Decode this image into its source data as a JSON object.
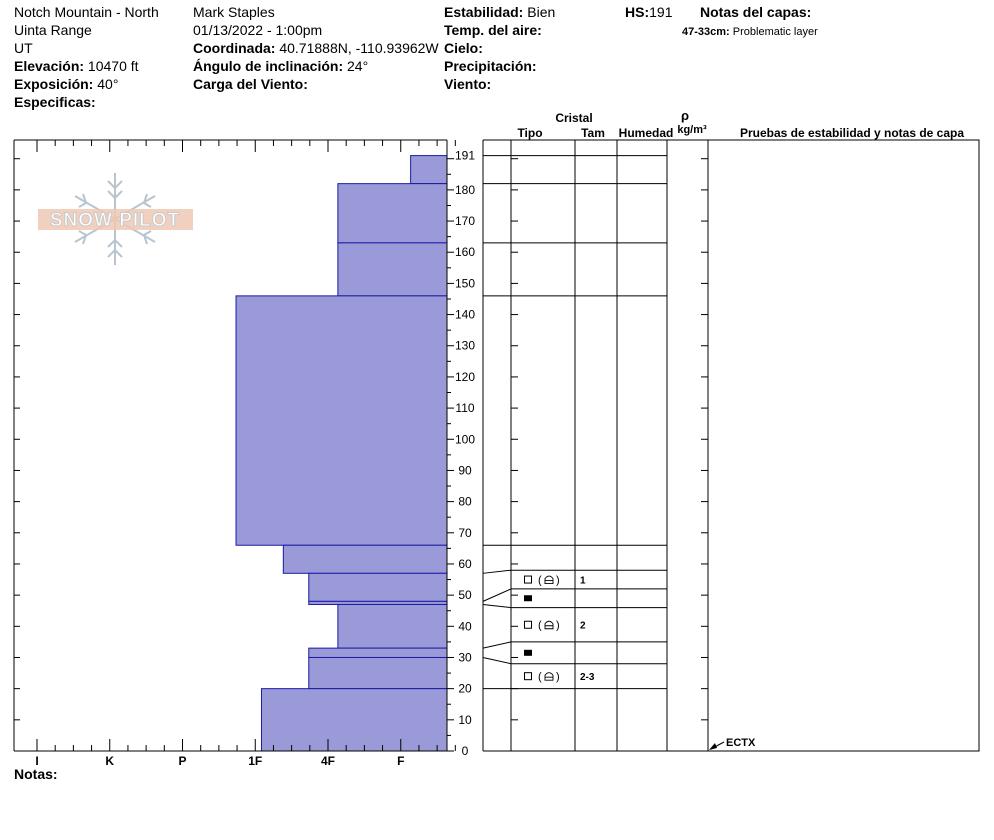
{
  "header": {
    "location": "Notch Mountain - North",
    "range": "Uinta Range",
    "state": "UT",
    "elevation_label": "Elevación:",
    "elevation_value": "10470 ft",
    "aspect_label": "Exposición:",
    "aspect_value": "40°",
    "specifics_label": "Especificas:",
    "observer": "Mark Staples",
    "datetime": "01/13/2022 - 1:00pm",
    "coord_label": "Coordinada:",
    "coord_value": "40.71888N, -110.93962W",
    "slope_label": "Ángulo de inclinación:",
    "slope_value": "24°",
    "wind_load_label": "Carga del Viento:",
    "stability_label": "Estabilidad:",
    "stability_value": "Bien",
    "air_temp_label": "Temp. del aire:",
    "sky_label": "Cielo:",
    "precip_label": "Precipitación:",
    "wind_label": "Viento:",
    "hs_label": "HS:",
    "hs_value": "191",
    "layer_notes_label": "Notas del capas:",
    "layer_note_range": "47-33cm:",
    "layer_note_text": "Problematic layer",
    "notes_label": "Notas:"
  },
  "logo": {
    "text": "SNOW PILOT"
  },
  "columns": {
    "crystal": "Cristal",
    "type": "Tipo",
    "size": "Tam",
    "moisture": "Humedad",
    "rho": "ρ",
    "density_unit": "kg/m³",
    "tests": "Pruebas de estabilidad y notas de capa"
  },
  "chart_data": {
    "type": "bar",
    "description_axis": "hardness",
    "hardness_categories": [
      "I",
      "K",
      "P",
      "1F",
      "4F",
      "F"
    ],
    "height_ticks": [
      0,
      10,
      20,
      30,
      40,
      50,
      60,
      70,
      80,
      90,
      100,
      110,
      120,
      130,
      140,
      150,
      160,
      170,
      180,
      191
    ],
    "ylim": [
      0,
      191
    ],
    "layers": [
      {
        "top": 191,
        "bottom": 182,
        "hardness": 0.5
      },
      {
        "top": 182,
        "bottom": 163,
        "hardness": 1.5
      },
      {
        "top": 163,
        "bottom": 146,
        "hardness": 1.5
      },
      {
        "top": 146,
        "bottom": 66,
        "hardness": 2.9
      },
      {
        "top": 66,
        "bottom": 57,
        "hardness": 2.25
      },
      {
        "top": 57,
        "bottom": 48,
        "hardness": 1.9
      },
      {
        "top": 48,
        "bottom": 47,
        "hardness": 1.9
      },
      {
        "top": 47,
        "bottom": 33,
        "hardness": 1.5
      },
      {
        "top": 33,
        "bottom": 30,
        "hardness": 1.9
      },
      {
        "top": 30,
        "bottom": 20,
        "hardness": 1.9
      },
      {
        "top": 20,
        "bottom": 0,
        "hardness": 2.55
      }
    ],
    "grain_rows": [
      {
        "top": 191,
        "bottom": 182,
        "type": "",
        "size": ""
      },
      {
        "top": 182,
        "bottom": 163,
        "type": "",
        "size": ""
      },
      {
        "top": 163,
        "bottom": 146,
        "type": "",
        "size": ""
      },
      {
        "top": 146,
        "bottom": 66,
        "type": "",
        "size": ""
      },
      {
        "top": 66,
        "bottom": 58,
        "type": "",
        "size": ""
      },
      {
        "top": 58,
        "bottom": 52,
        "type": "fc-mix",
        "size": "1"
      },
      {
        "top": 52,
        "bottom": 46,
        "type": "sh",
        "size": ""
      },
      {
        "top": 46,
        "bottom": 35,
        "type": "fc-mix",
        "size": "2"
      },
      {
        "top": 35,
        "bottom": 28,
        "type": "sh",
        "size": ""
      },
      {
        "top": 28,
        "bottom": 20,
        "type": "fc-mix",
        "size": "2-3"
      },
      {
        "top": 20,
        "bottom": 0,
        "type": "",
        "size": ""
      }
    ],
    "stability_test": {
      "label": "ECTX",
      "height": 0
    }
  },
  "colors": {
    "layer_fill": "#9a9ad8",
    "layer_stroke": "#1a1aa8",
    "axis": "#000000"
  }
}
